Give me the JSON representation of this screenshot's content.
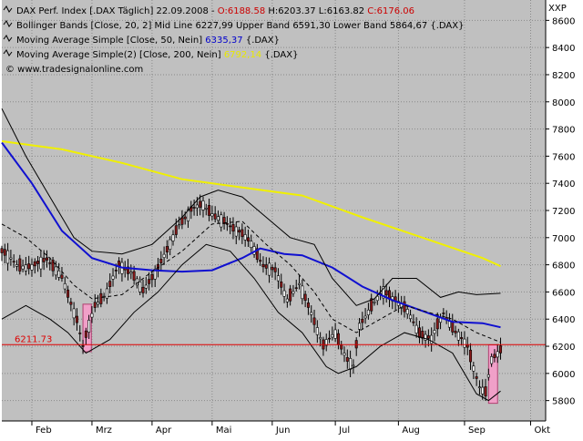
{
  "chart_data": {
    "type": "candlestick",
    "axis_unit": "XXP",
    "ylim": [
      5650,
      8750
    ],
    "y_ticks": [
      5800,
      6000,
      6200,
      6400,
      6600,
      6800,
      7000,
      7200,
      7400,
      7600,
      7800,
      8000,
      8200,
      8400,
      8600
    ],
    "y_tick_labels": [
      "5800",
      "6000",
      "6200",
      "6400",
      "6600",
      "6800",
      "7000",
      "7200",
      "7400",
      "7600",
      "7800",
      "8000",
      "8200",
      "8400",
      "8600"
    ],
    "x_months": [
      {
        "label": "Feb",
        "day": 10
      },
      {
        "label": "Mrz",
        "day": 30
      },
      {
        "label": "Apr",
        "day": 50
      },
      {
        "label": "Mai",
        "day": 70
      },
      {
        "label": "Jun",
        "day": 90
      },
      {
        "label": "Jul",
        "day": 111
      },
      {
        "label": "Aug",
        "day": 132
      },
      {
        "label": "Sep",
        "day": 154
      },
      {
        "label": "Okt",
        "day": 176
      }
    ],
    "grid": true,
    "legend": [
      {
        "parts": [
          {
            "text": "DAX Perf. Index [.DAX  Täglich] 22.09.2008 - ",
            "color": "#000000"
          },
          {
            "text": "O:6188.58",
            "color": "#cc0000"
          },
          {
            "text": " H:6203.37 L:6163.82 ",
            "color": "#000000"
          },
          {
            "text": "C:6176.06",
            "color": "#cc0000"
          }
        ]
      },
      {
        "parts": [
          {
            "text": "Bollinger Bands [Close, 20, 2] Mid Line 6227,99 Upper Band 6591,30 Lower Band 5864,67 {.DAX}",
            "color": "#000000"
          }
        ]
      },
      {
        "parts": [
          {
            "text": "Moving Average Simple [Close, 50, Nein] ",
            "color": "#000000"
          },
          {
            "text": "6335,37",
            "color": "#0000cc"
          },
          {
            "text": " {.DAX}",
            "color": "#000000"
          }
        ]
      },
      {
        "parts": [
          {
            "text": "Moving Average Simple(2) [Close, 200, Nein] ",
            "color": "#000000"
          },
          {
            "text": "6792,14",
            "color": "#e8e800"
          },
          {
            "text": " {.DAX}",
            "color": "#000000"
          }
        ]
      },
      {
        "parts": [
          {
            "text": "© www.tradesignalonline.com",
            "color": "#000000"
          }
        ]
      }
    ],
    "hline": {
      "value": 6211.73,
      "label": "6211.73",
      "color": "#dd0000"
    },
    "highlights": [
      {
        "day_from": 27,
        "day_to": 29.8,
        "y_from": 6160,
        "y_to": 6510
      },
      {
        "day_from": 162,
        "day_to": 165,
        "y_from": 5780,
        "y_to": 6210
      }
    ],
    "close_path": [
      [
        0,
        6900
      ],
      [
        5,
        6800
      ],
      [
        10,
        6780
      ],
      [
        15,
        6850
      ],
      [
        20,
        6700
      ],
      [
        25,
        6400
      ],
      [
        27,
        6200
      ],
      [
        31,
        6500
      ],
      [
        35,
        6600
      ],
      [
        39,
        6800
      ],
      [
        43,
        6750
      ],
      [
        47,
        6600
      ],
      [
        51,
        6750
      ],
      [
        55,
        6900
      ],
      [
        59,
        7100
      ],
      [
        63,
        7200
      ],
      [
        67,
        7250
      ],
      [
        71,
        7150
      ],
      [
        75,
        7100
      ],
      [
        79,
        7050
      ],
      [
        83,
        6950
      ],
      [
        87,
        6800
      ],
      [
        91,
        6750
      ],
      [
        95,
        6550
      ],
      [
        99,
        6650
      ],
      [
        103,
        6450
      ],
      [
        107,
        6200
      ],
      [
        111,
        6300
      ],
      [
        115,
        6100
      ],
      [
        117,
        6050
      ],
      [
        119,
        6350
      ],
      [
        123,
        6500
      ],
      [
        127,
        6600
      ],
      [
        131,
        6550
      ],
      [
        135,
        6450
      ],
      [
        139,
        6300
      ],
      [
        143,
        6250
      ],
      [
        147,
        6450
      ],
      [
        151,
        6300
      ],
      [
        155,
        6200
      ],
      [
        159,
        5900
      ],
      [
        161,
        5850
      ],
      [
        163,
        6100
      ],
      [
        166,
        6180
      ]
    ],
    "series": [
      {
        "name": "Moving Average Simple [Close, 50, Nein]",
        "color": "#1010d0",
        "points": [
          [
            0,
            7700
          ],
          [
            10,
            7400
          ],
          [
            20,
            7050
          ],
          [
            30,
            6850
          ],
          [
            40,
            6780
          ],
          [
            50,
            6760
          ],
          [
            60,
            6750
          ],
          [
            70,
            6760
          ],
          [
            80,
            6850
          ],
          [
            86,
            6920
          ],
          [
            94,
            6880
          ],
          [
            100,
            6870
          ],
          [
            110,
            6780
          ],
          [
            120,
            6640
          ],
          [
            130,
            6540
          ],
          [
            140,
            6460
          ],
          [
            150,
            6380
          ],
          [
            160,
            6370
          ],
          [
            166,
            6340
          ]
        ]
      },
      {
        "name": "Moving Average Simple(2) [Close, 200, Nein]",
        "color": "#f0f000",
        "points": [
          [
            0,
            7710
          ],
          [
            20,
            7650
          ],
          [
            40,
            7550
          ],
          [
            60,
            7430
          ],
          [
            80,
            7370
          ],
          [
            100,
            7310
          ],
          [
            120,
            7150
          ],
          [
            140,
            7000
          ],
          [
            160,
            6850
          ],
          [
            166,
            6790
          ]
        ]
      },
      {
        "name": "Bollinger Bands Upper Band",
        "color": "#000000",
        "points": [
          [
            0,
            7950
          ],
          [
            8,
            7600
          ],
          [
            16,
            7300
          ],
          [
            24,
            7000
          ],
          [
            30,
            6900
          ],
          [
            40,
            6880
          ],
          [
            50,
            6950
          ],
          [
            60,
            7150
          ],
          [
            66,
            7300
          ],
          [
            72,
            7350
          ],
          [
            80,
            7300
          ],
          [
            88,
            7150
          ],
          [
            96,
            7000
          ],
          [
            104,
            6950
          ],
          [
            110,
            6700
          ],
          [
            118,
            6500
          ],
          [
            124,
            6550
          ],
          [
            130,
            6700
          ],
          [
            138,
            6700
          ],
          [
            146,
            6560
          ],
          [
            152,
            6600
          ],
          [
            158,
            6580
          ],
          [
            166,
            6590
          ]
        ]
      },
      {
        "name": "Bollinger Bands Lower Band",
        "color": "#000000",
        "points": [
          [
            0,
            6400
          ],
          [
            8,
            6500
          ],
          [
            16,
            6400
          ],
          [
            22,
            6300
          ],
          [
            28,
            6150
          ],
          [
            36,
            6250
          ],
          [
            44,
            6450
          ],
          [
            52,
            6600
          ],
          [
            60,
            6800
          ],
          [
            68,
            6950
          ],
          [
            76,
            6900
          ],
          [
            84,
            6700
          ],
          [
            92,
            6450
          ],
          [
            100,
            6300
          ],
          [
            108,
            6050
          ],
          [
            112,
            6000
          ],
          [
            118,
            6050
          ],
          [
            126,
            6200
          ],
          [
            134,
            6300
          ],
          [
            142,
            6250
          ],
          [
            150,
            6150
          ],
          [
            158,
            5850
          ],
          [
            162,
            5800
          ],
          [
            166,
            5870
          ]
        ]
      },
      {
        "name": "Bollinger Bands Mid Line",
        "color": "#000000",
        "dashed": true,
        "points": [
          [
            0,
            7100
          ],
          [
            8,
            7000
          ],
          [
            16,
            6850
          ],
          [
            24,
            6650
          ],
          [
            30,
            6550
          ],
          [
            40,
            6580
          ],
          [
            50,
            6750
          ],
          [
            60,
            6900
          ],
          [
            70,
            7100
          ],
          [
            80,
            7120
          ],
          [
            88,
            6950
          ],
          [
            96,
            6800
          ],
          [
            104,
            6600
          ],
          [
            110,
            6400
          ],
          [
            118,
            6300
          ],
          [
            126,
            6400
          ],
          [
            134,
            6500
          ],
          [
            142,
            6450
          ],
          [
            150,
            6400
          ],
          [
            158,
            6300
          ],
          [
            166,
            6230
          ]
        ]
      }
    ]
  }
}
